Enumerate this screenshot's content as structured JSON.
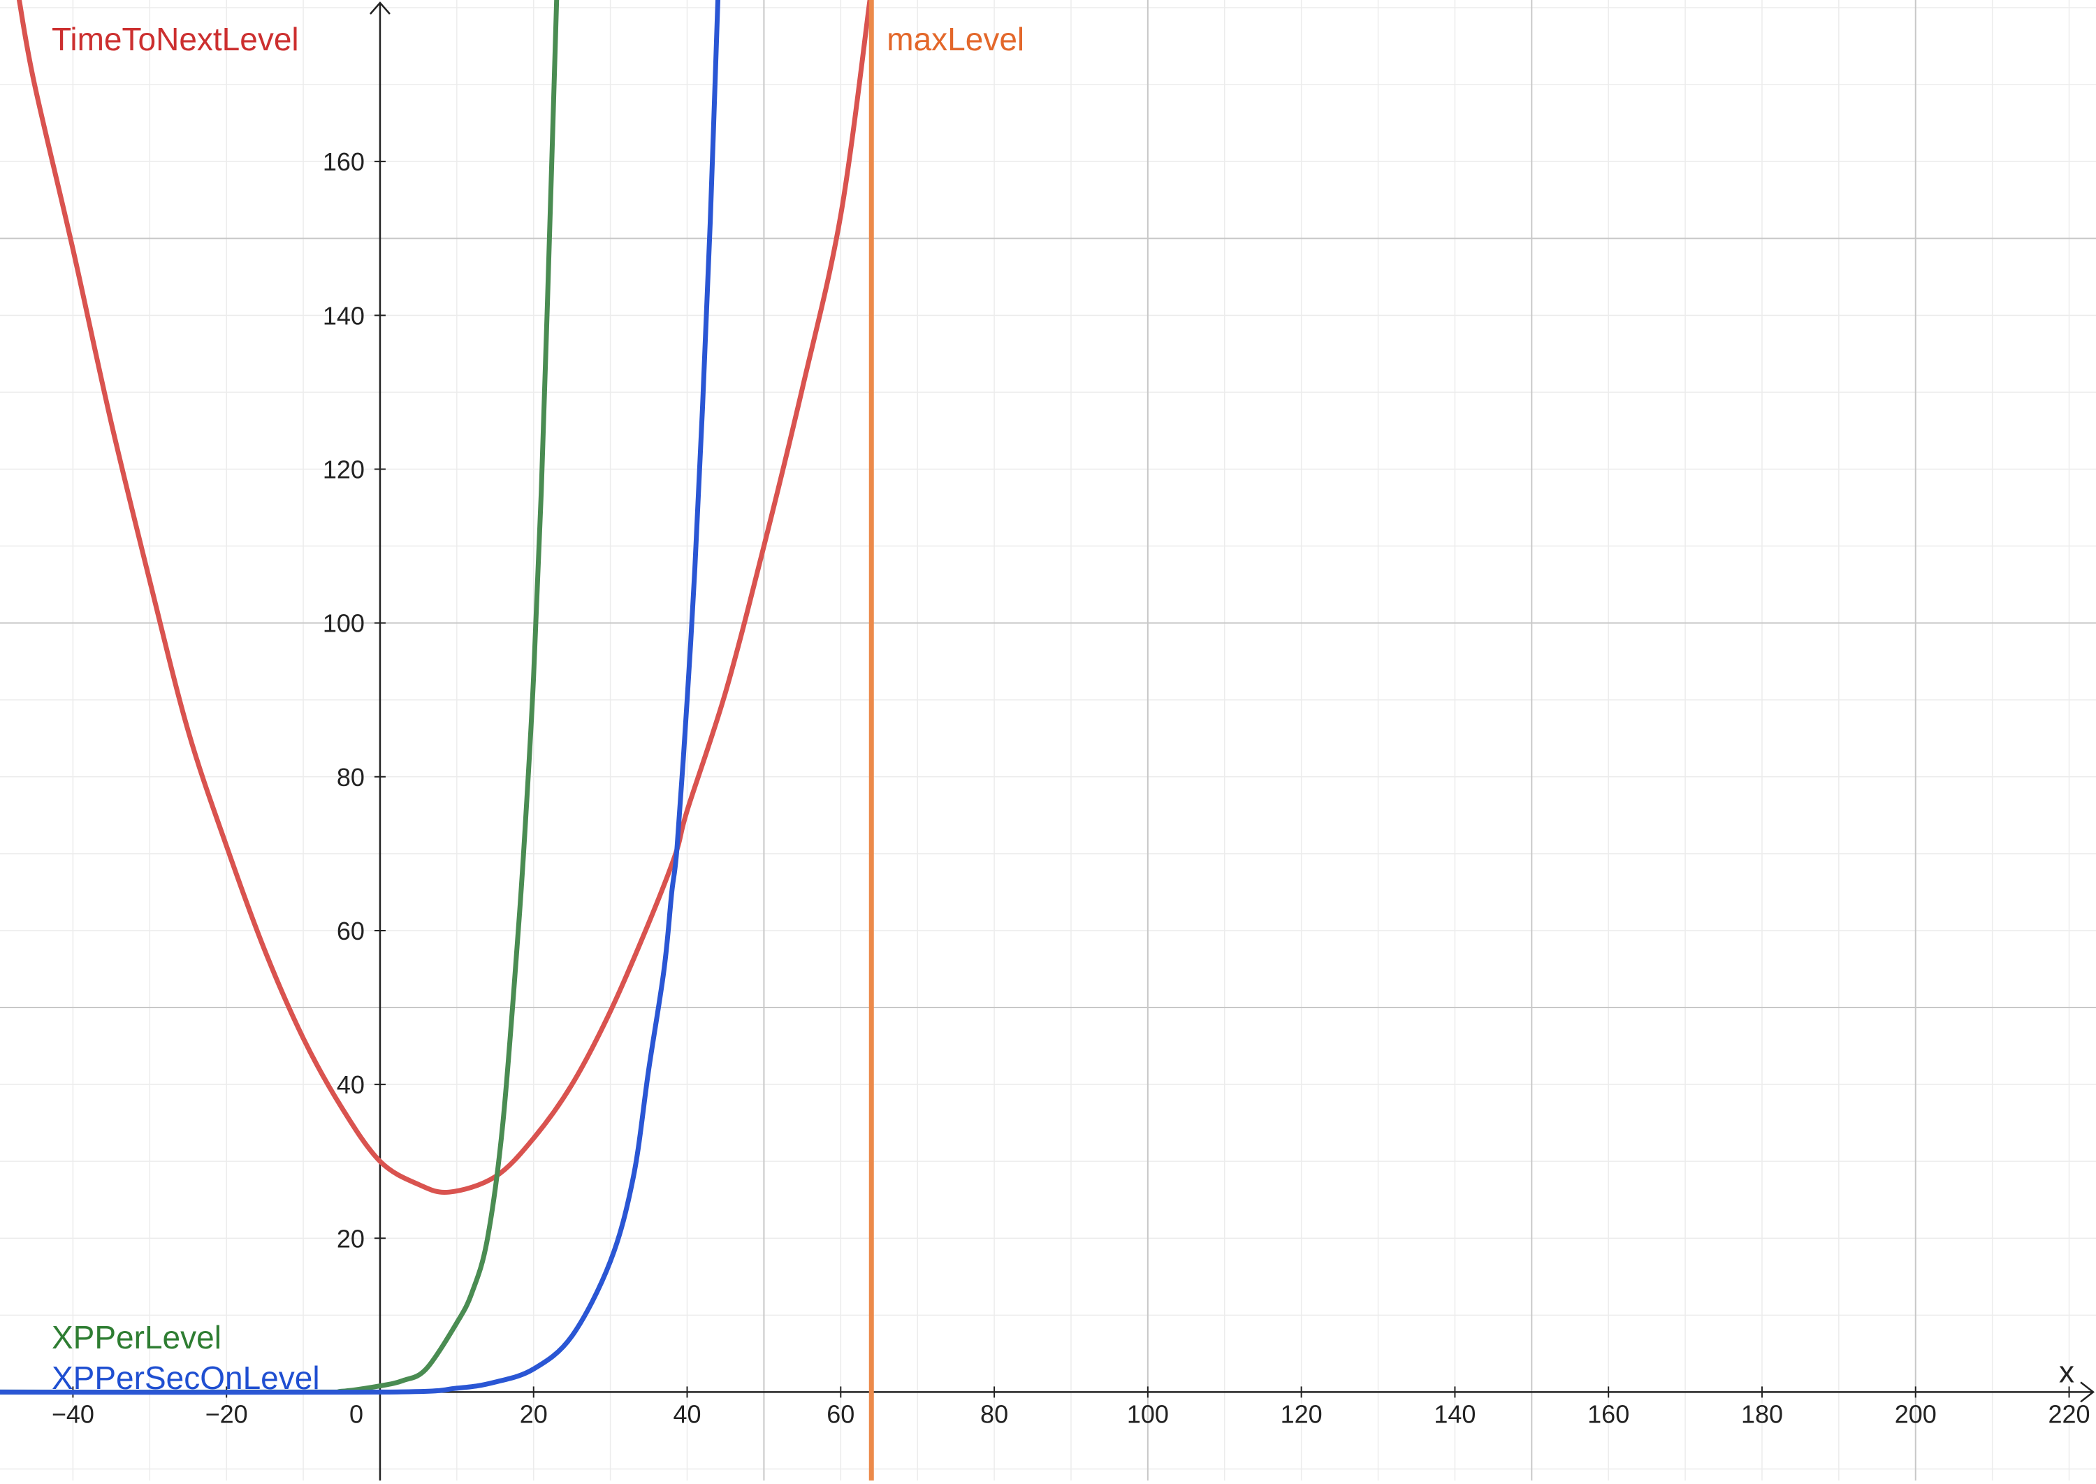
{
  "chart_data": {
    "type": "line",
    "x_axis_name": "x",
    "xlim": [
      -49.5,
      223.5
    ],
    "ylim": [
      -11.5,
      181
    ],
    "grid": true,
    "x_ticks": [
      -40,
      -20,
      0,
      20,
      40,
      60,
      80,
      100,
      120,
      140,
      160,
      180,
      200,
      220
    ],
    "y_ticks": [
      20,
      40,
      60,
      80,
      100,
      120,
      140,
      160
    ],
    "x_tick_labels": [
      "−40",
      "−20",
      "0",
      "20",
      "40",
      "60",
      "80",
      "100",
      "120",
      "140",
      "160",
      "180",
      "200",
      "220"
    ],
    "y_tick_labels": [
      "20",
      "40",
      "60",
      "80",
      "100",
      "120",
      "140",
      "160"
    ],
    "series": [
      {
        "name": "TimeToNextLevel",
        "color": "#d9534f",
        "label_color": "#cc2f2f",
        "points": [
          [
            -47,
            181
          ],
          [
            -45,
            170
          ],
          [
            -40,
            148.6
          ],
          [
            -35,
            126
          ],
          [
            -30,
            105.5
          ],
          [
            -25,
            86
          ],
          [
            -20,
            71
          ],
          [
            -15,
            57.4
          ],
          [
            -10,
            46
          ],
          [
            -5,
            37
          ],
          [
            0,
            30
          ],
          [
            5,
            27
          ],
          [
            9,
            26
          ],
          [
            15,
            28
          ],
          [
            20,
            33
          ],
          [
            25,
            40
          ],
          [
            30,
            49.5
          ],
          [
            35,
            61
          ],
          [
            38.5,
            70
          ],
          [
            40,
            75.6
          ],
          [
            45,
            91
          ],
          [
            50,
            110
          ],
          [
            55,
            130.5
          ],
          [
            60,
            153
          ],
          [
            63.8,
            181
          ]
        ]
      },
      {
        "name": "XPPerLevel",
        "color": "#4a8c52",
        "label_color": "#2e7d32",
        "points": [
          [
            -50,
            0
          ],
          [
            -10,
            0
          ],
          [
            -5,
            0.1
          ],
          [
            0,
            0.8
          ],
          [
            3,
            1.5
          ],
          [
            6,
            3
          ],
          [
            10,
            9
          ],
          [
            12,
            13
          ],
          [
            14,
            20
          ],
          [
            16,
            35
          ],
          [
            18,
            60
          ],
          [
            19,
            75
          ],
          [
            20,
            93
          ],
          [
            21,
            117
          ],
          [
            22,
            148
          ],
          [
            23,
            181
          ]
        ]
      },
      {
        "name": "XPPerSecOnLevel",
        "color": "#2a56d4",
        "label_color": "#1f4fd1",
        "points": [
          [
            -50,
            0
          ],
          [
            0,
            0
          ],
          [
            10,
            0.5
          ],
          [
            15,
            1.3
          ],
          [
            20,
            3
          ],
          [
            25,
            7.3
          ],
          [
            30,
            17
          ],
          [
            33,
            28
          ],
          [
            35,
            42
          ],
          [
            37,
            55
          ],
          [
            38,
            65
          ],
          [
            38.7,
            71
          ],
          [
            40,
            90
          ],
          [
            41,
            107
          ],
          [
            42,
            128
          ],
          [
            43,
            152
          ],
          [
            44,
            181
          ]
        ]
      },
      {
        "name": "maxLevel",
        "color": "#ec8a4a",
        "label_color": "#e3672a",
        "x_value": 64
      }
    ]
  }
}
